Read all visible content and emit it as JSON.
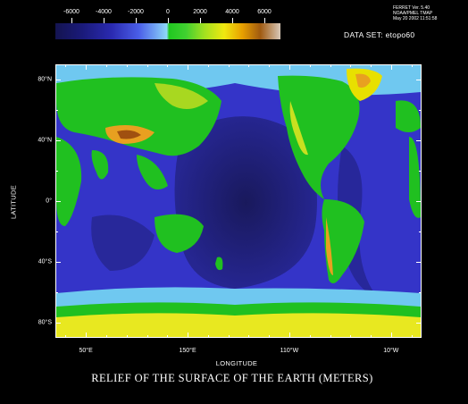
{
  "header": {
    "ferret_lines": [
      "FERRET Ver. 5.40",
      "NOAA/PMEL TMAP",
      "May 20 2002 11:51:58"
    ],
    "dataset_label": "DATA SET: etopo60"
  },
  "colorbar": {
    "labels": [
      "-6000",
      "-4000",
      "-2000",
      "0",
      "2000",
      "4000",
      "6000"
    ],
    "min": -7000,
    "max": 7000
  },
  "axes": {
    "ylabel": "LATITUDE",
    "xlabel": "LONGITUDE",
    "lat_labels": [
      {
        "text": "80°N",
        "lat": 80
      },
      {
        "text": "40°N",
        "lat": 40
      },
      {
        "text": "0°",
        "lat": 0
      },
      {
        "text": "40°S",
        "lat": -40
      },
      {
        "text": "80°S",
        "lat": -80
      }
    ],
    "lon_labels": [
      {
        "text": "50°E",
        "lon": 50
      },
      {
        "text": "150°E",
        "lon": 150
      },
      {
        "text": "110°W",
        "lon": 250
      },
      {
        "text": "10°W",
        "lon": 350
      }
    ],
    "lon_range": [
      20,
      380
    ],
    "lat_range": [
      -90,
      90
    ]
  },
  "title": "RELIEF OF THE SURFACE OF THE EARTH (METERS)",
  "colors": {
    "deep_ocean": "#1c1c6a",
    "ocean": "#3a3ad8",
    "shelf": "#7fd8f0",
    "lowland": "#20c020",
    "upland": "#c8e020",
    "mountain": "#e8a020",
    "peak": "#a05010",
    "ice": "#e8e820"
  }
}
